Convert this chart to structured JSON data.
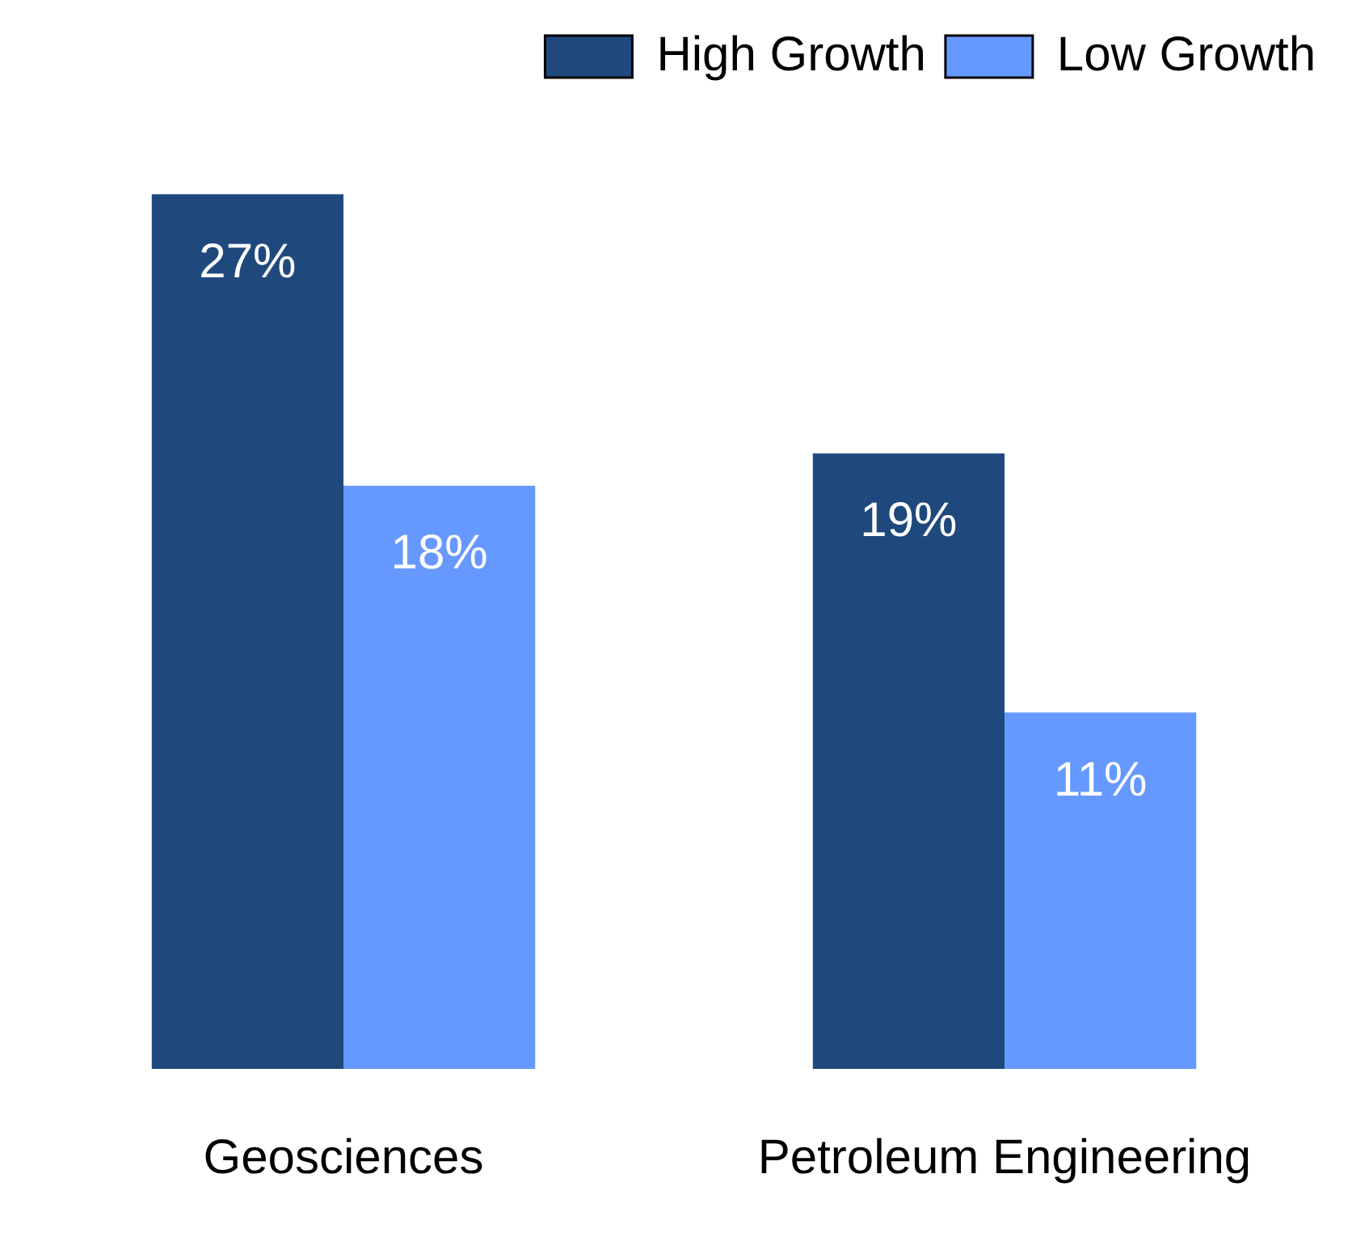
{
  "chart_data": {
    "type": "bar",
    "categories": [
      "Geosciences",
      "Petroleum Engineering"
    ],
    "series": [
      {
        "name": "High Growth",
        "color": "#1f497d",
        "values": [
          27,
          19
        ],
        "value_labels": [
          "27%",
          "19%"
        ]
      },
      {
        "name": "Low Growth",
        "color": "#6699ff",
        "values": [
          18,
          11
        ],
        "value_labels": [
          "18%",
          "11%"
        ]
      }
    ],
    "legend": "top right"
  }
}
